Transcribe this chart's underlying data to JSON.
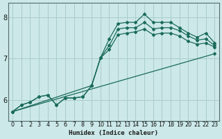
{
  "xlabel": "Humidex (Indice chaleur)",
  "ylabel": "",
  "background_color": "#cce8e8",
  "grid_color": "#aacccc",
  "line_color": "#1a6b5a",
  "xlim": [
    -0.5,
    23.5
  ],
  "ylim": [
    5.5,
    8.35
  ],
  "yticks": [
    6,
    7,
    8
  ],
  "xticks": [
    0,
    1,
    2,
    3,
    4,
    5,
    6,
    7,
    8,
    9,
    10,
    11,
    12,
    13,
    14,
    15,
    16,
    17,
    18,
    19,
    20,
    21,
    22,
    23
  ],
  "lines": [
    {
      "x": [
        0,
        1,
        2,
        3,
        4,
        5,
        6,
        7,
        8,
        9,
        10,
        11,
        12,
        13,
        14,
        15,
        16,
        17,
        18,
        19,
        20,
        21,
        22,
        23
      ],
      "y": [
        5.72,
        5.88,
        5.95,
        6.08,
        6.12,
        5.88,
        6.05,
        6.05,
        6.08,
        6.35,
        7.02,
        7.48,
        7.85,
        7.88,
        7.88,
        8.08,
        7.88,
        7.88,
        7.88,
        7.75,
        7.62,
        7.52,
        7.62,
        7.38
      ]
    },
    {
      "x": [
        0,
        1,
        2,
        3,
        4,
        5,
        6,
        7,
        8,
        9,
        10,
        11,
        12,
        13,
        14,
        15,
        16,
        17,
        18,
        19,
        20,
        21,
        22,
        23
      ],
      "y": [
        5.72,
        5.88,
        5.95,
        6.08,
        6.12,
        5.88,
        6.05,
        6.05,
        6.08,
        6.35,
        7.02,
        7.32,
        7.72,
        7.75,
        7.75,
        7.88,
        7.72,
        7.75,
        7.75,
        7.68,
        7.55,
        7.45,
        7.48,
        7.32
      ]
    },
    {
      "x": [
        0,
        9,
        10,
        11,
        12,
        13,
        14,
        15,
        16,
        17,
        18,
        19,
        20,
        21,
        22,
        23
      ],
      "y": [
        5.72,
        6.35,
        7.02,
        7.22,
        7.58,
        7.62,
        7.65,
        7.72,
        7.58,
        7.62,
        7.62,
        7.55,
        7.42,
        7.35,
        7.38,
        7.28
      ]
    },
    {
      "x": [
        0,
        23
      ],
      "y": [
        5.72,
        7.12
      ]
    }
  ]
}
